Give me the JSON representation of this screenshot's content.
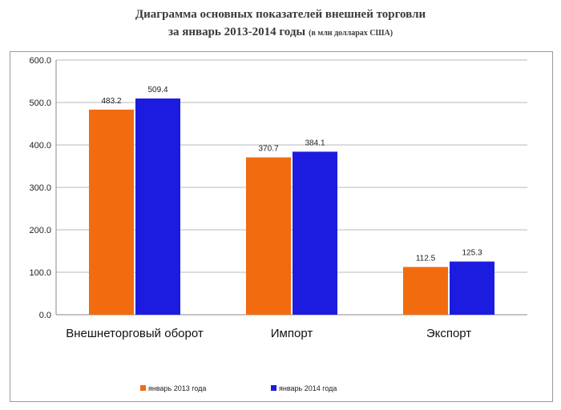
{
  "title_line1": "Диаграмма основных показателей внешней торговли",
  "title_line2": "за январь 2013-2014 годы",
  "title_note": "(в млн долларах США)",
  "chart_data": {
    "type": "bar",
    "categories": [
      "Внешнеторговый оборот",
      "Импорт",
      "Экспорт"
    ],
    "series": [
      {
        "name": "январь 2013 года",
        "color": "#F26B0F",
        "values": [
          483.2,
          370.7,
          112.5
        ]
      },
      {
        "name": "январь 2014 года",
        "color": "#1C1CE0",
        "values": [
          509.4,
          384.1,
          125.3
        ]
      }
    ],
    "data_labels": [
      [
        "483.2",
        "370.7",
        "112.5"
      ],
      [
        "509.4",
        "384.1",
        "125.3"
      ]
    ],
    "yticks": [
      "0.0",
      "100.0",
      "200.0",
      "300.0",
      "400.0",
      "500.0",
      "600.0"
    ],
    "ylim": [
      0,
      600
    ],
    "grid": true,
    "legend": "bottom"
  }
}
